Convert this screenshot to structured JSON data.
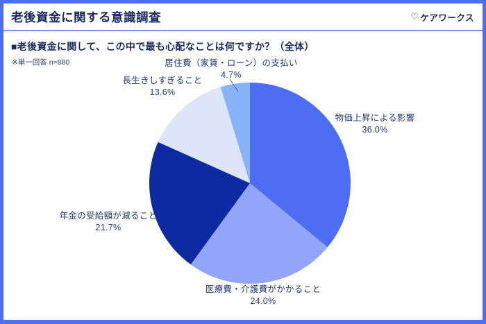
{
  "header": {
    "title": "老後資金に関する意識調査",
    "logo_heart": "♡",
    "logo_text": "ケアワークス"
  },
  "question": {
    "text": "■老後資金に関して、この中で最も心配なことは何ですか？（全体）",
    "note": "※単一回答 n=880"
  },
  "colors": {
    "frame": "#4D6DF2",
    "divider": "#7C90F5",
    "title": "#1A2B5E",
    "text": "#203A70",
    "leader_line": "#5A6B9E"
  },
  "chart_data": {
    "type": "pie",
    "title": "老後資金に関して、この中で最も心配なことは何ですか？（全体）",
    "sample_note": "※単一回答 n=880",
    "n": 880,
    "start_angle_deg": 0,
    "direction": "clockwise",
    "label_position": "outside",
    "legend": "none",
    "slices": [
      {
        "label": "物価上昇による影響",
        "value": 36.0,
        "pct_label": "36.0%",
        "color": "#4D6DF2"
      },
      {
        "label": "医療費・介護費がかかること",
        "value": 24.0,
        "pct_label": "24.0%",
        "color": "#92A5F8"
      },
      {
        "label": "年金の受給額が減ること",
        "value": 21.7,
        "pct_label": "21.7%",
        "color": "#0C2BA0"
      },
      {
        "label": "長生きしすぎること",
        "value": 13.6,
        "pct_label": "13.6%",
        "color": "#DEE4FA"
      },
      {
        "label": "居住費（家賃・ローン）の支払い",
        "value": 4.7,
        "pct_label": "4.7%",
        "color": "#87B4F8"
      }
    ]
  }
}
